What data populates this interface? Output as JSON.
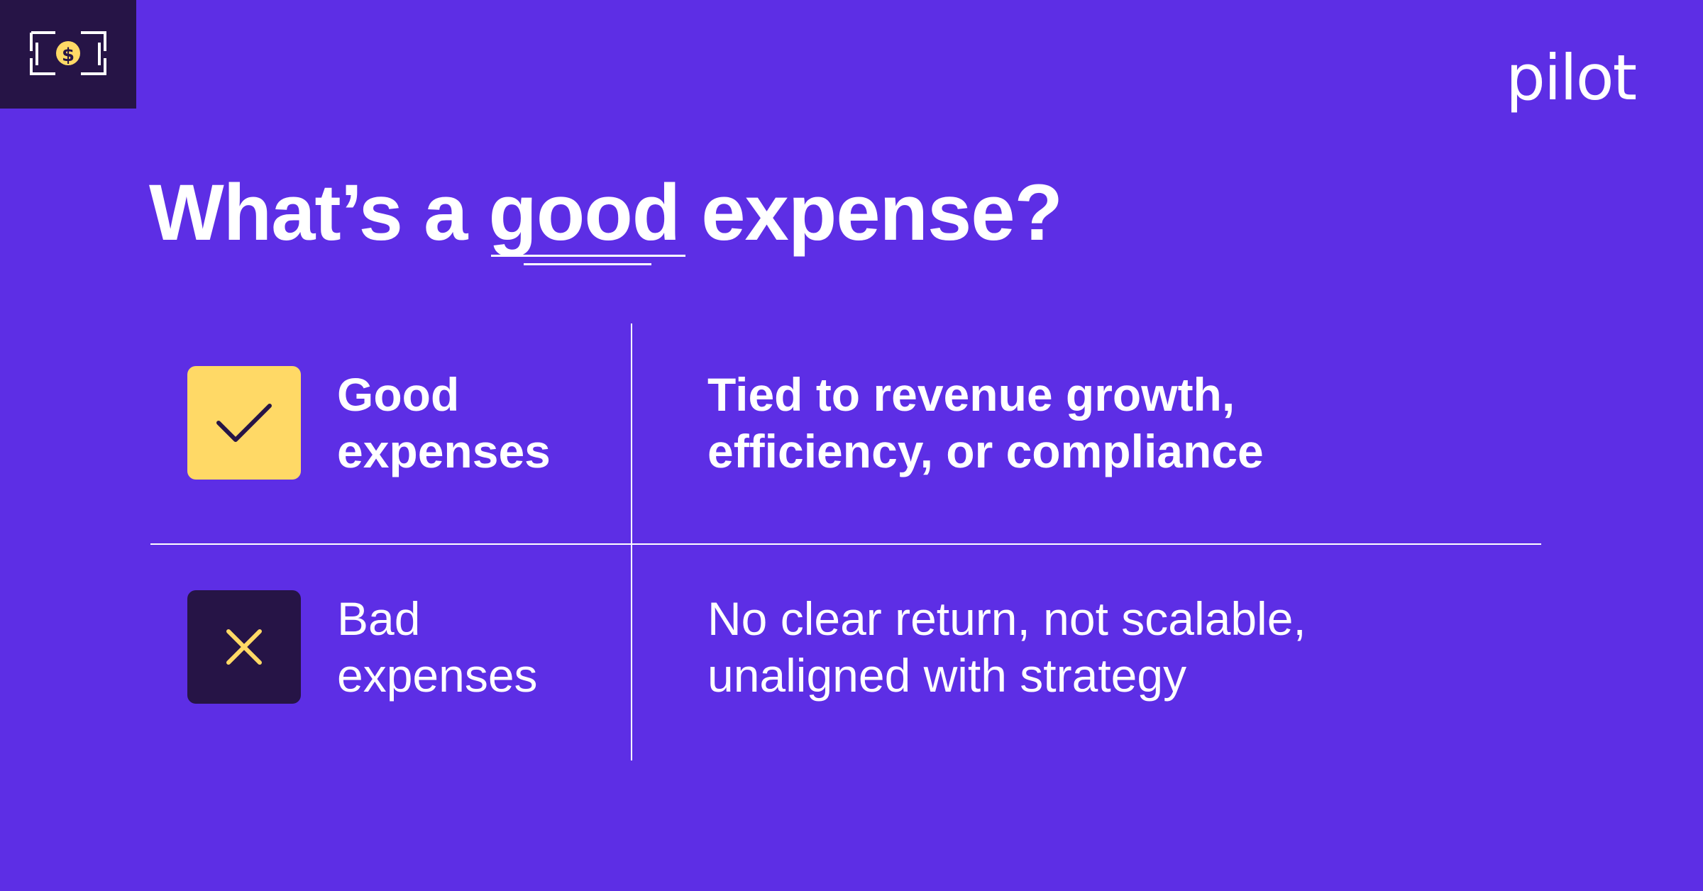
{
  "brand": {
    "logo_text": "pilot"
  },
  "colors": {
    "background": "#5d2ee5",
    "dark": "#261446",
    "accent_yellow": "#ffd966",
    "text": "#ffffff"
  },
  "headline": {
    "before": "What’s a ",
    "emphasis": "good",
    "after": " expense?"
  },
  "rows": [
    {
      "icon": "check-icon",
      "label_line1": "Good",
      "label_line2": "expenses",
      "desc_line1": "Tied to revenue growth,",
      "desc_line2": "efficiency, or compliance"
    },
    {
      "icon": "x-icon",
      "label_line1": "Bad",
      "label_line2": "expenses",
      "desc_line1": "No clear return, not scalable,",
      "desc_line2": "unaligned with strategy"
    }
  ],
  "badge": {
    "icon": "dollar-bill-icon"
  }
}
